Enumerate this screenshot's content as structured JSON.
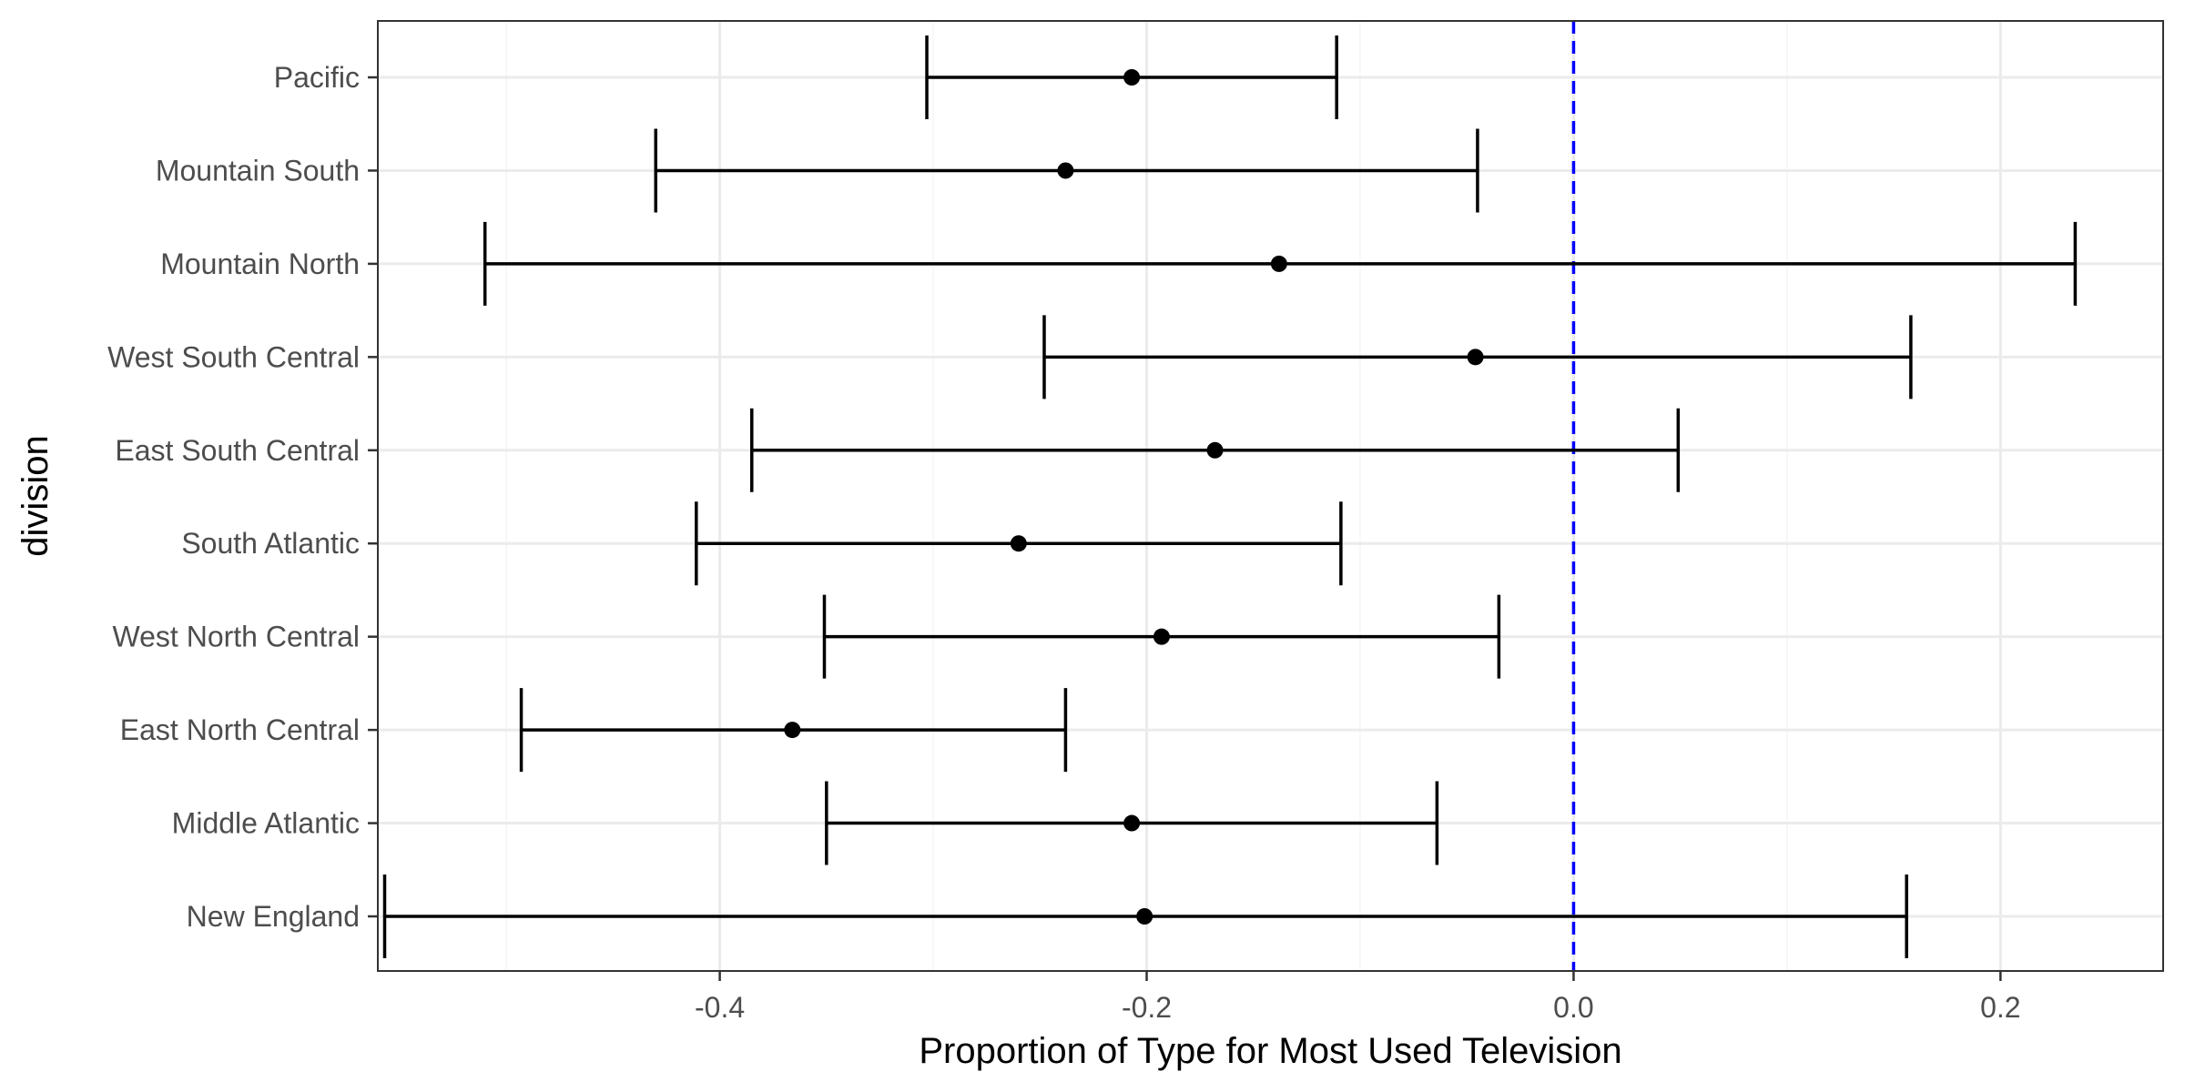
{
  "chart_data": {
    "type": "errorbar",
    "orientation": "horizontal",
    "xlabel": "Proportion of Type for Most Used Television",
    "ylabel": "division",
    "xlim": [
      -0.5602,
      0.2762
    ],
    "x_ticks": [
      -0.4,
      -0.2,
      0.0,
      0.2
    ],
    "x_tick_labels": [
      "-0.4",
      "-0.2",
      "0.0",
      "0.2"
    ],
    "x_minor_ticks": [
      -0.5,
      -0.3,
      -0.1,
      0.1
    ],
    "reference_line": {
      "x": 0.0,
      "style": "dashed",
      "color": "#0000ff"
    },
    "grid": true,
    "categories": [
      "Pacific",
      "Mountain South",
      "Mountain North",
      "West South Central",
      "East South Central",
      "South Atlantic",
      "West North Central",
      "East North Central",
      "Middle Atlantic",
      "New England"
    ],
    "estimate": [
      -0.207,
      -0.238,
      -0.138,
      -0.046,
      -0.168,
      -0.26,
      -0.193,
      -0.366,
      -0.207,
      -0.201
    ],
    "lower": [
      -0.303,
      -0.43,
      -0.51,
      -0.248,
      -0.385,
      -0.411,
      -0.351,
      -0.493,
      -0.35,
      -0.557
    ],
    "upper": [
      -0.111,
      -0.045,
      0.235,
      0.158,
      0.049,
      -0.109,
      -0.035,
      -0.238,
      -0.064,
      0.156
    ],
    "colors": {
      "panel_border": "#333333",
      "grid_major": "#ebebeb",
      "grid_minor": "#f5f5f5",
      "data": "#000000",
      "reference": "#0000ff"
    }
  }
}
